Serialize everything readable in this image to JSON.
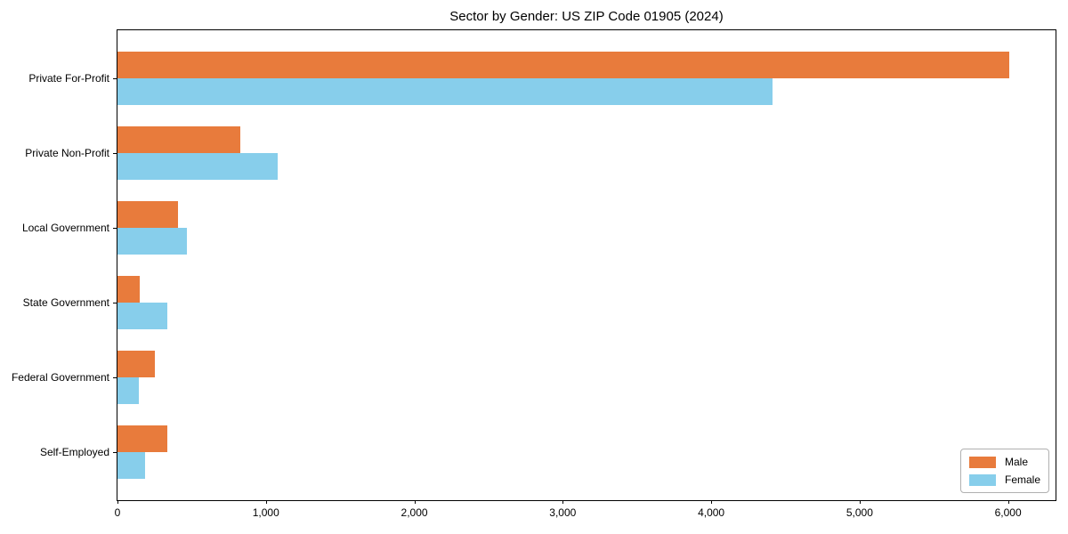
{
  "chart_data": {
    "type": "bar",
    "orientation": "horizontal",
    "title": "Sector by Gender: US ZIP Code 01905 (2024)",
    "categories": [
      "Private For-Profit",
      "Private Non-Profit",
      "Local Government",
      "State Government",
      "Federal Government",
      "Self-Employed"
    ],
    "series": [
      {
        "name": "Male",
        "color": "#e87b3c",
        "values": [
          6010,
          830,
          410,
          150,
          250,
          335
        ]
      },
      {
        "name": "Female",
        "color": "#87ceeb",
        "values": [
          4410,
          1080,
          470,
          335,
          145,
          185
        ]
      }
    ],
    "xlabel": "",
    "ylabel": "",
    "xlim": [
      0,
      6320
    ],
    "xticks": [
      0,
      1000,
      2000,
      3000,
      4000,
      5000,
      6000
    ],
    "xtick_labels": [
      "0",
      "1,000",
      "2,000",
      "3,000",
      "4,000",
      "5,000",
      "6,000"
    ],
    "grid": false,
    "background": "#ffffff",
    "legend": {
      "position": "lower right"
    }
  }
}
